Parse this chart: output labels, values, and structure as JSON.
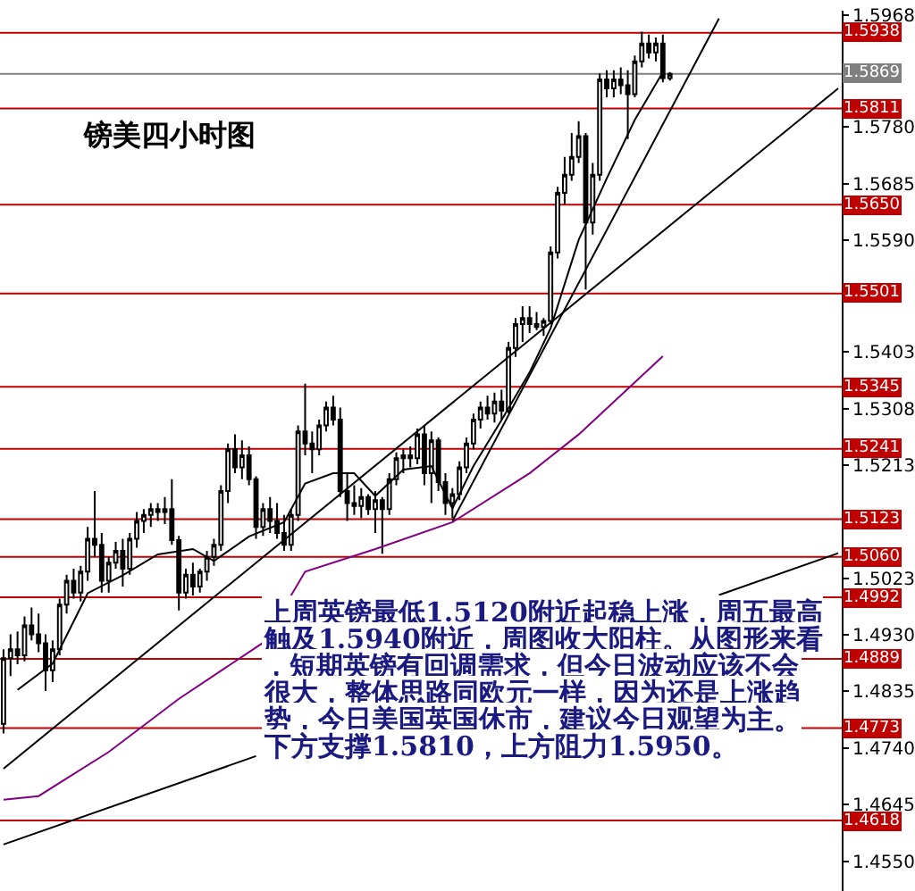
{
  "chart_data": {
    "type": "candlestick",
    "title": "镑美四小时图",
    "categories": [
      null,
      null,
      null,
      null,
      null,
      null,
      null,
      null,
      null,
      null,
      null,
      null,
      null,
      null,
      null,
      null,
      null,
      null,
      null,
      null,
      null,
      null,
      null,
      null,
      null,
      null,
      null,
      null,
      null,
      null,
      null,
      null,
      null,
      null,
      null,
      null,
      null,
      null,
      null,
      null,
      null,
      null,
      null,
      null,
      null,
      null,
      null,
      null,
      null,
      null,
      null,
      null,
      null,
      null,
      null,
      null,
      null,
      null,
      null,
      null,
      null,
      null,
      null,
      null,
      null,
      null,
      null,
      null,
      null,
      null,
      null,
      null,
      null,
      null,
      null,
      null,
      null,
      null,
      null,
      null,
      null,
      null,
      null,
      null,
      null,
      null,
      null,
      null,
      null,
      null,
      null,
      null,
      null,
      null,
      null,
      null,
      null,
      null,
      null,
      null,
      null,
      null,
      null,
      null,
      null,
      null,
      null,
      null,
      null,
      null,
      null,
      null,
      null,
      null,
      null,
      null,
      null,
      null,
      null,
      null
    ],
    "ohlc": [
      [
        1.478,
        1.4905,
        1.4764,
        1.489
      ],
      [
        1.489,
        1.493,
        1.486,
        1.4905
      ],
      [
        1.4905,
        1.4935,
        1.488,
        1.4895
      ],
      [
        1.4895,
        1.496,
        1.4885,
        1.4945
      ],
      [
        1.4945,
        1.4975,
        1.492,
        1.493
      ],
      [
        1.493,
        1.4965,
        1.49,
        1.4915
      ],
      [
        1.4915,
        1.493,
        1.4835,
        1.487
      ],
      [
        1.487,
        1.492,
        1.485,
        1.4905
      ],
      [
        1.4905,
        1.499,
        1.4895,
        1.498
      ],
      [
        1.498,
        1.503,
        1.4965,
        1.502
      ],
      [
        1.502,
        1.504,
        1.499,
        1.5
      ],
      [
        1.5,
        1.5045,
        1.4985,
        1.5035
      ],
      [
        1.5035,
        1.511,
        1.502,
        1.509
      ],
      [
        1.509,
        1.517,
        1.506,
        1.508
      ],
      [
        1.508,
        1.51,
        1.5,
        1.502
      ],
      [
        1.502,
        1.506,
        1.5,
        1.505
      ],
      [
        1.505,
        1.5085,
        1.504,
        1.507
      ],
      [
        1.507,
        1.509,
        1.501,
        1.504
      ],
      [
        1.504,
        1.51,
        1.503,
        1.509
      ],
      [
        1.509,
        1.5135,
        1.5075,
        1.512
      ],
      [
        1.512,
        1.514,
        1.51,
        1.513
      ],
      [
        1.513,
        1.515,
        1.511,
        1.514
      ],
      [
        1.514,
        1.515,
        1.512,
        1.5135
      ],
      [
        1.5135,
        1.516,
        1.5115,
        1.514
      ],
      [
        1.514,
        1.519,
        1.508,
        1.5088
      ],
      [
        1.5088,
        1.5095,
        1.497,
        1.5
      ],
      [
        1.5,
        1.504,
        1.499,
        1.503
      ],
      [
        1.503,
        1.505,
        1.4995,
        1.501
      ],
      [
        1.501,
        1.504,
        1.5,
        1.5035
      ],
      [
        1.5035,
        1.507,
        1.502,
        1.506
      ],
      [
        1.506,
        1.509,
        1.5045,
        1.508
      ],
      [
        1.508,
        1.518,
        1.507,
        1.517
      ],
      [
        1.517,
        1.525,
        1.515,
        1.524
      ],
      [
        1.524,
        1.5265,
        1.52,
        1.521
      ],
      [
        1.521,
        1.5255,
        1.519,
        1.523
      ],
      [
        1.523,
        1.5245,
        1.518,
        1.519
      ],
      [
        1.519,
        1.5195,
        1.509,
        1.511
      ],
      [
        1.511,
        1.515,
        1.5095,
        1.514
      ],
      [
        1.514,
        1.516,
        1.51,
        1.512
      ],
      [
        1.512,
        1.515,
        1.509,
        1.51
      ],
      [
        1.51,
        1.513,
        1.507,
        1.508
      ],
      [
        1.508,
        1.514,
        1.507,
        1.513
      ],
      [
        1.513,
        1.528,
        1.512,
        1.527
      ],
      [
        1.527,
        1.535,
        1.523,
        1.525
      ],
      [
        1.525,
        1.527,
        1.52,
        1.524
      ],
      [
        1.524,
        1.529,
        1.523,
        1.528
      ],
      [
        1.528,
        1.532,
        1.527,
        1.531
      ],
      [
        1.531,
        1.533,
        1.528,
        1.529
      ],
      [
        1.529,
        1.531,
        1.516,
        1.517
      ],
      [
        1.517,
        1.52,
        1.512,
        1.515
      ],
      [
        1.515,
        1.518,
        1.513,
        1.5145
      ],
      [
        1.5145,
        1.5175,
        1.5125,
        1.516
      ],
      [
        1.516,
        1.5165,
        1.513,
        1.514
      ],
      [
        1.514,
        1.517,
        1.51,
        1.5155
      ],
      [
        1.5155,
        1.516,
        1.5065,
        1.514
      ],
      [
        1.514,
        1.52,
        1.513,
        1.519
      ],
      [
        1.519,
        1.5235,
        1.518,
        1.5225
      ],
      [
        1.5225,
        1.524,
        1.52,
        1.523
      ],
      [
        1.523,
        1.5245,
        1.521,
        1.5225
      ],
      [
        1.5225,
        1.5275,
        1.5215,
        1.5265
      ],
      [
        1.5265,
        1.528,
        1.518,
        1.52
      ],
      [
        1.52,
        1.527,
        1.515,
        1.5255
      ],
      [
        1.5255,
        1.526,
        1.517,
        1.5185
      ],
      [
        1.5185,
        1.52,
        1.513,
        1.515
      ],
      [
        1.515,
        1.5175,
        1.5125,
        1.5165
      ],
      [
        1.5165,
        1.522,
        1.5155,
        1.521
      ],
      [
        1.521,
        1.526,
        1.52,
        1.525
      ],
      [
        1.525,
        1.53,
        1.524,
        1.529
      ],
      [
        1.529,
        1.532,
        1.5275,
        1.531
      ],
      [
        1.531,
        1.533,
        1.529,
        1.53
      ],
      [
        1.53,
        1.5335,
        1.5285,
        1.532
      ],
      [
        1.532,
        1.534,
        1.529,
        1.5305
      ],
      [
        1.5305,
        1.542,
        1.53,
        1.541
      ],
      [
        1.541,
        1.546,
        1.5395,
        1.545
      ],
      [
        1.545,
        1.548,
        1.542,
        1.546
      ],
      [
        1.546,
        1.548,
        1.5435,
        1.545
      ],
      [
        1.545,
        1.547,
        1.544,
        1.5445
      ],
      [
        1.5445,
        1.546,
        1.543,
        1.5455
      ],
      [
        1.5455,
        1.558,
        1.545,
        1.557
      ],
      [
        1.557,
        1.568,
        1.556,
        1.567
      ],
      [
        1.567,
        1.573,
        1.565,
        1.57
      ],
      [
        1.57,
        1.577,
        1.569,
        1.573
      ],
      [
        1.573,
        1.579,
        1.572,
        1.5765
      ],
      [
        1.5765,
        1.577,
        1.5508,
        1.562
      ],
      [
        1.562,
        1.572,
        1.56,
        1.57
      ],
      [
        1.57,
        1.587,
        1.569,
        1.586
      ],
      [
        1.586,
        1.5875,
        1.583,
        1.5845
      ],
      [
        1.5845,
        1.5875,
        1.583,
        1.586
      ],
      [
        1.586,
        1.588,
        1.5835,
        1.585
      ],
      [
        1.585,
        1.5875,
        1.576,
        1.5835
      ],
      [
        1.5835,
        1.59,
        1.583,
        1.589
      ],
      [
        1.589,
        1.594,
        1.588,
        1.592
      ],
      [
        1.592,
        1.5935,
        1.5895,
        1.5905
      ],
      [
        1.5905,
        1.593,
        1.589,
        1.592
      ],
      [
        1.592,
        1.5935,
        1.5855,
        1.5862
      ],
      [
        1.5862,
        1.5872,
        1.5858,
        1.5869
      ],
      null,
      null,
      null,
      null,
      null,
      null,
      null,
      null,
      null,
      null,
      null,
      null,
      null,
      null,
      null,
      null,
      null,
      null,
      null,
      null,
      null,
      null,
      null,
      null
    ],
    "series": [
      {
        "type": "line",
        "color": "#000000",
        "values": [
          null,
          null,
          1.4837,
          null,
          null,
          null,
          null,
          1.4881,
          null,
          null,
          null,
          null,
          1.4999,
          null,
          null,
          null,
          null,
          1.5029,
          null,
          null,
          null,
          null,
          1.5064,
          null,
          null,
          null,
          null,
          1.5073,
          null,
          null,
          1.5053,
          null,
          null,
          null,
          null,
          1.5094,
          null,
          null,
          null,
          null,
          1.5118,
          null,
          null,
          1.5183,
          null,
          null,
          null,
          1.52,
          null,
          null,
          1.52,
          null,
          null,
          1.5162,
          null,
          null,
          null,
          1.5206,
          null,
          null,
          null,
          1.5212,
          null,
          null,
          1.5141,
          null,
          null,
          1.5212,
          null,
          null,
          null,
          1.5289,
          null,
          null,
          null,
          1.5369,
          null,
          null,
          1.5443,
          null,
          null,
          null,
          1.5591,
          null,
          null,
          null,
          1.5694,
          null,
          null,
          null,
          1.5792,
          null,
          null,
          null,
          1.5872,
          null,
          null,
          null,
          null,
          null,
          null,
          null,
          null,
          null,
          null,
          null,
          null,
          null,
          null,
          null,
          null,
          null,
          null,
          null,
          null,
          null,
          null,
          null,
          null,
          null
        ]
      },
      {
        "type": "line",
        "color": "#800080",
        "values": [
          1.4653,
          null,
          null,
          null,
          null,
          1.4659,
          null,
          null,
          null,
          null,
          null,
          null,
          null,
          null,
          null,
          1.4733,
          null,
          null,
          null,
          null,
          null,
          null,
          null,
          null,
          null,
          1.4822,
          null,
          null,
          null,
          null,
          null,
          null,
          null,
          null,
          null,
          null,
          null,
          1.4916,
          null,
          null,
          null,
          null,
          null,
          1.5035,
          null,
          null,
          null,
          null,
          null,
          null,
          null,
          null,
          null,
          1.5073,
          null,
          null,
          null,
          null,
          null,
          null,
          null,
          null,
          null,
          null,
          1.5118,
          null,
          null,
          null,
          null,
          null,
          null,
          null,
          null,
          null,
          null,
          1.52,
          null,
          null,
          null,
          null,
          null,
          null,
          1.5265,
          null,
          null,
          null,
          null,
          null,
          null,
          null,
          null,
          null,
          null,
          null,
          1.5396,
          null,
          null,
          null,
          null,
          null,
          null,
          null,
          null,
          null,
          null,
          null,
          null,
          null,
          null,
          null,
          null,
          null,
          null,
          null,
          null,
          null,
          null,
          null,
          null,
          null
        ]
      },
      {
        "type": "line",
        "color": "#000000",
        "values": [
          1.4578,
          null,
          null,
          null,
          null,
          null,
          null,
          null,
          null,
          null,
          null,
          null,
          null,
          null,
          null,
          null,
          null,
          null,
          null,
          null,
          null,
          null,
          null,
          null,
          null,
          null,
          null,
          null,
          null,
          null,
          null,
          null,
          null,
          null,
          null,
          null,
          1.4726,
          null,
          null,
          null,
          null,
          null,
          null,
          null,
          null,
          null,
          null,
          null,
          null,
          null,
          null,
          null,
          null,
          null,
          null,
          null,
          null,
          null,
          null,
          null,
          null,
          null,
          null,
          null,
          null,
          null,
          null,
          null,
          null,
          null,
          null,
          null,
          null,
          null,
          null,
          null,
          null,
          null,
          null,
          null,
          null,
          null,
          null,
          null,
          null,
          null,
          null,
          null,
          null,
          null,
          null,
          null,
          null,
          null,
          null,
          null,
          null,
          null,
          null,
          null,
          null,
          null,
          null,
          null,
          null,
          null,
          null,
          null,
          null,
          null,
          null,
          null,
          null,
          null,
          null,
          null,
          null,
          null,
          null,
          null
        ]
      },
      {
        "type": "line",
        "color": "#000000",
        "values": [
          null,
          null,
          null,
          null,
          null,
          null,
          null,
          null,
          null,
          null,
          null,
          null,
          null,
          null,
          null,
          null,
          null,
          null,
          null,
          null,
          null,
          null,
          null,
          null,
          null,
          null,
          null,
          null,
          null,
          null,
          null,
          null,
          null,
          null,
          null,
          null,
          null,
          null,
          null,
          null,
          null,
          null,
          null,
          null,
          null,
          null,
          null,
          null,
          null,
          null,
          null,
          null,
          null,
          null,
          null,
          null,
          null,
          null,
          null,
          null,
          null,
          null,
          null,
          null,
          null,
          null,
          null,
          null,
          null,
          null,
          null,
          null,
          null,
          null,
          null,
          null,
          null,
          null,
          null,
          null,
          null,
          null,
          null,
          null,
          null,
          null,
          null,
          null,
          null,
          null,
          null,
          null,
          null,
          null,
          null,
          null,
          null,
          null,
          null,
          null,
          null,
          null,
          1.4996,
          null,
          null,
          null,
          null,
          null,
          null,
          null,
          null,
          null,
          null,
          null,
          null,
          null,
          null,
          null,
          null,
          1.5066
        ]
      },
      {
        "type": "line",
        "color": "#000000",
        "values": [
          1.4705,
          null,
          null,
          null,
          null,
          null,
          null,
          null,
          null,
          null,
          null,
          null,
          null,
          null,
          null,
          null,
          null,
          null,
          null,
          null,
          null,
          null,
          null,
          null,
          null,
          null,
          null,
          null,
          null,
          null,
          null,
          null,
          null,
          null,
          null,
          null,
          null,
          null,
          null,
          null,
          null,
          null,
          null,
          null,
          null,
          null,
          null,
          null,
          null,
          null,
          null,
          null,
          null,
          null,
          null,
          null,
          null,
          null,
          null,
          null,
          null,
          null,
          null,
          null,
          null,
          null,
          null,
          null,
          null,
          null,
          null,
          null,
          null,
          null,
          null,
          null,
          null,
          null,
          null,
          null,
          null,
          null,
          null,
          null,
          null,
          null,
          null,
          null,
          null,
          null,
          null,
          null,
          null,
          null,
          null,
          null,
          null,
          null,
          null,
          null,
          null,
          null,
          null,
          null,
          null,
          null,
          null,
          null,
          null,
          null,
          null,
          null,
          null,
          null,
          null,
          null,
          null,
          null,
          null,
          1.5845
        ]
      },
      {
        "type": "line",
        "color": "#000000",
        "values": [
          null,
          null,
          null,
          null,
          null,
          null,
          null,
          null,
          null,
          null,
          null,
          null,
          null,
          null,
          null,
          null,
          null,
          null,
          null,
          null,
          null,
          null,
          null,
          null,
          null,
          null,
          null,
          null,
          null,
          null,
          null,
          null,
          null,
          null,
          null,
          null,
          null,
          null,
          null,
          null,
          null,
          null,
          null,
          null,
          null,
          null,
          null,
          null,
          null,
          null,
          null,
          null,
          null,
          null,
          null,
          null,
          null,
          null,
          null,
          null,
          null,
          null,
          null,
          null,
          1.512,
          null,
          null,
          null,
          null,
          null,
          null,
          null,
          null,
          null,
          null,
          null,
          null,
          null,
          null,
          null,
          null,
          null,
          null,
          null,
          null,
          null,
          null,
          null,
          null,
          null,
          null,
          null,
          null,
          null,
          null,
          null,
          null,
          null,
          null,
          null,
          null,
          null,
          1.5962,
          null,
          null,
          null,
          null,
          null,
          null,
          null,
          null,
          null,
          null,
          null,
          null,
          null,
          null,
          null,
          null,
          null
        ]
      }
    ],
    "ylim": [
      1.45,
      1.5975
    ],
    "yticks": [
      1.5968,
      {
        "value": 1.578,
        "label": "1.5780"
      },
      1.5685,
      {
        "value": 1.559,
        "label": "1.5590"
      },
      1.5403,
      1.5308,
      1.5213,
      1.5023,
      {
        "value": 1.493,
        "label": "1.4930"
      },
      1.4835,
      {
        "value": 1.474,
        "label": "1.4740"
      },
      1.4645,
      {
        "value": 1.455,
        "label": "1.4550"
      }
    ],
    "tick_labels": "y",
    "ref_lines": [
      {
        "axis": "y",
        "value": 1.5938,
        "label": "1.5938",
        "color": "#c00000"
      },
      {
        "axis": "y",
        "value": 1.5869,
        "label": "1.5869",
        "color": "#808080"
      },
      {
        "axis": "y",
        "value": 1.5811,
        "label": "1.5811",
        "color": "#c00000"
      },
      {
        "axis": "y",
        "value": 1.565,
        "label": "1.5650",
        "color": "#c00000"
      },
      {
        "axis": "y",
        "value": 1.5501,
        "label": "1.5501",
        "color": "#c00000"
      },
      {
        "axis": "y",
        "value": 1.5345,
        "label": "1.5345",
        "color": "#c00000"
      },
      {
        "axis": "y",
        "value": 1.5241,
        "label": "1.5241",
        "color": "#c00000"
      },
      {
        "axis": "y",
        "value": 1.5123,
        "label": "1.5123",
        "color": "#c00000"
      },
      {
        "axis": "y",
        "value": 1.506,
        "label": "1.5060",
        "color": "#c00000"
      },
      {
        "axis": "y",
        "value": 1.4992,
        "label": "1.4992",
        "color": "#c00000"
      },
      {
        "axis": "y",
        "value": 1.4889,
        "label": "1.4889",
        "color": "#c00000"
      },
      {
        "axis": "y",
        "value": 1.4773,
        "label": "1.4773",
        "color": "#c00000"
      },
      {
        "axis": "y",
        "value": 1.4618,
        "label": "1.4618",
        "color": "#c00000"
      }
    ],
    "annotations": [
      "上周英镑最低1.5120附近起稳上涨，周五最高触及1.5940附近，周图收大阳柱。从图形来看，短期英镑有回调需求，但今日波动应该不会很大，整体思路同欧元一样，因为还是上涨趋势，今日美国英国休市，建议今日观望为主。下方支撑1.5810，上方阻力1.5950。"
    ],
    "grid": false
  }
}
